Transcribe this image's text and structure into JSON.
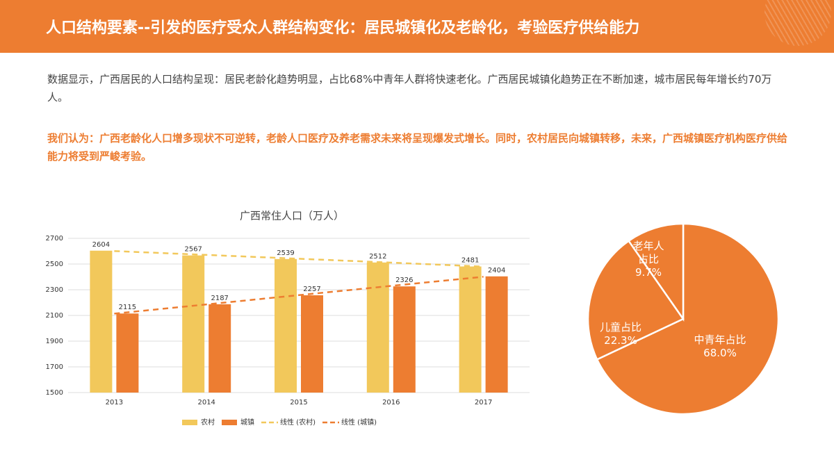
{
  "header": {
    "title": "人口结构要素--引发的医疗受众人群结构变化：居民城镇化及老龄化，考验医疗供给能力"
  },
  "paragraphs": [
    "数据显示，广西居民的人口结构呈现：居民老龄化趋势明显，占比68%中青年人群将快速老化。广西居民城镇化趋势正在不断加速，城市居民每年增长约70万人。",
    "我们认为：广西老龄化人口增多现状不可逆转，老龄人口医疗及养老需求未来将呈现爆发式增长。同时，农村居民向城镇转移，未来，广西城镇医疗机构医疗供给能力将受到严峻考验。"
  ],
  "chart_data": [
    {
      "type": "bar",
      "title": "广西常住人口（万人）",
      "categories": [
        "2013",
        "2014",
        "2015",
        "2016",
        "2017"
      ],
      "series": [
        {
          "name": "农村",
          "color": "#f2c85b",
          "values": [
            2604,
            2567,
            2539,
            2512,
            2481
          ]
        },
        {
          "name": "城镇",
          "color": "#ed7d31",
          "values": [
            2115,
            2187,
            2257,
            2326,
            2404
          ]
        },
        {
          "name": "线性 (农村)",
          "type": "line",
          "dashed": true,
          "color": "#f2c85b",
          "values": [
            2601,
            2571,
            2541,
            2511,
            2480
          ]
        },
        {
          "name": "线性 (城镇)",
          "type": "line",
          "dashed": true,
          "color": "#ed7d31",
          "values": [
            2114,
            2186,
            2258,
            2330,
            2401
          ]
        }
      ],
      "ylim": [
        1500,
        2700
      ],
      "yticks": [
        1500,
        1700,
        1900,
        2100,
        2300,
        2500,
        2700
      ],
      "grid": true,
      "legend": "bottom"
    },
    {
      "type": "pie",
      "categories": [
        "中青年占比",
        "儿童占比",
        "老年人占比"
      ],
      "values": [
        68.0,
        22.3,
        9.7
      ],
      "value_labels": [
        "68.0%",
        "22.3%",
        "9.7%"
      ],
      "color": "#ed7d31"
    }
  ]
}
